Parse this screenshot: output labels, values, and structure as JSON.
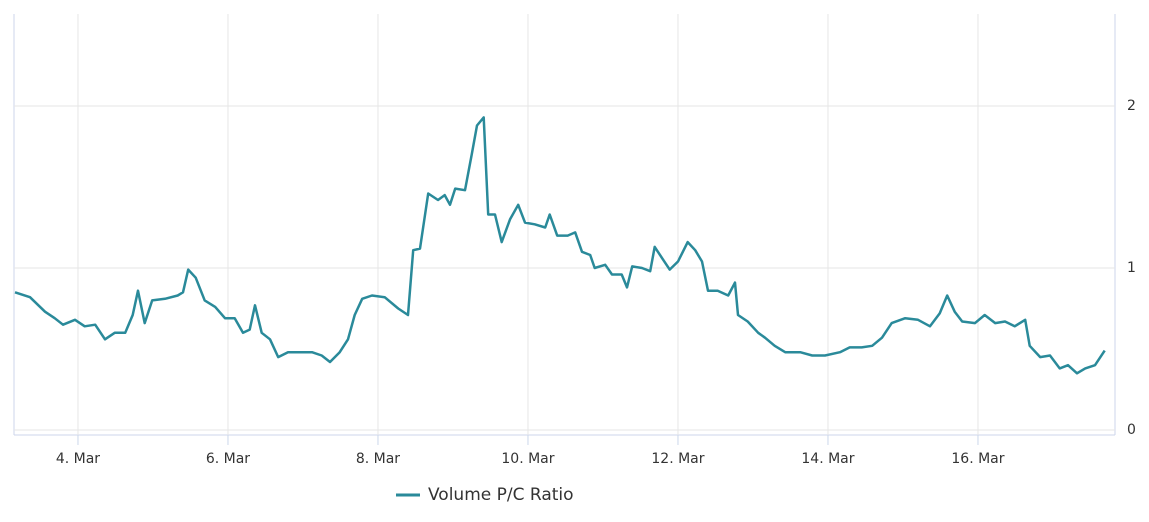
{
  "chart_data": {
    "type": "line",
    "x": [
      3.16,
      3.36,
      3.56,
      3.69,
      3.8,
      3.96,
      4.09,
      4.23,
      4.36,
      4.49,
      4.63,
      4.73,
      4.8,
      4.89,
      4.99,
      5.16,
      5.33,
      5.4,
      5.47,
      5.57,
      5.69,
      5.83,
      5.96,
      6.09,
      6.2,
      6.29,
      6.36,
      6.45,
      6.56,
      6.67,
      6.8,
      6.96,
      7.12,
      7.25,
      7.36,
      7.49,
      7.6,
      7.69,
      7.79,
      7.92,
      8.09,
      8.27,
      8.4,
      8.47,
      8.56,
      8.67,
      8.8,
      8.89,
      8.96,
      9.03,
      9.16,
      9.25,
      9.32,
      9.41,
      9.47,
      9.56,
      9.65,
      9.76,
      9.87,
      9.96,
      10.09,
      10.23,
      10.29,
      10.39,
      10.53,
      10.63,
      10.72,
      10.83,
      10.89,
      11.03,
      11.12,
      11.25,
      11.32,
      11.39,
      11.52,
      11.63,
      11.69,
      11.79,
      11.89,
      12.0,
      12.13,
      12.23,
      12.32,
      12.4,
      12.53,
      12.67,
      12.76,
      12.8,
      12.93,
      13.07,
      13.16,
      13.29,
      13.43,
      13.63,
      13.79,
      13.96,
      14.16,
      14.29,
      14.45,
      14.59,
      14.72,
      14.85,
      15.03,
      15.2,
      15.36,
      15.49,
      15.59,
      15.69,
      15.79,
      15.96,
      16.09,
      16.23,
      16.36,
      16.49,
      16.63,
      16.69,
      16.83,
      16.96,
      17.09,
      17.2,
      17.32,
      17.43,
      17.56,
      17.69
    ],
    "series": [
      {
        "name": "Volume P/C Ratio",
        "color": "#2a8a9a",
        "values": [
          0.85,
          0.82,
          0.73,
          0.69,
          0.65,
          0.68,
          0.64,
          0.65,
          0.56,
          0.6,
          0.6,
          0.71,
          0.86,
          0.66,
          0.8,
          0.81,
          0.83,
          0.85,
          0.99,
          0.94,
          0.8,
          0.76,
          0.69,
          0.69,
          0.6,
          0.62,
          0.77,
          0.6,
          0.56,
          0.45,
          0.48,
          0.48,
          0.48,
          0.46,
          0.42,
          0.48,
          0.56,
          0.71,
          0.81,
          0.83,
          0.82,
          0.75,
          0.71,
          1.11,
          1.12,
          1.46,
          1.42,
          1.45,
          1.39,
          1.49,
          1.48,
          1.7,
          1.88,
          1.93,
          1.33,
          1.33,
          1.16,
          1.3,
          1.39,
          1.28,
          1.27,
          1.25,
          1.33,
          1.2,
          1.2,
          1.22,
          1.1,
          1.08,
          1.0,
          1.02,
          0.96,
          0.96,
          0.88,
          1.01,
          1.0,
          0.98,
          1.13,
          1.06,
          0.99,
          1.04,
          1.16,
          1.11,
          1.04,
          0.86,
          0.86,
          0.83,
          0.91,
          0.71,
          0.67,
          0.6,
          0.57,
          0.52,
          0.48,
          0.48,
          0.46,
          0.46,
          0.48,
          0.51,
          0.51,
          0.52,
          0.57,
          0.66,
          0.69,
          0.68,
          0.64,
          0.72,
          0.83,
          0.73,
          0.67,
          0.66,
          0.71,
          0.66,
          0.67,
          0.64,
          0.68,
          0.52,
          0.45,
          0.46,
          0.38,
          0.4,
          0.35,
          0.38,
          0.4,
          0.49
        ]
      }
    ],
    "xlim": [
      3.147,
      17.787
    ],
    "xticks": [
      {
        "value": 4,
        "label": "4. Mar"
      },
      {
        "value": 6,
        "label": "6. Mar"
      },
      {
        "value": 8,
        "label": "8. Mar"
      },
      {
        "value": 10,
        "label": "10. Mar"
      },
      {
        "value": 12,
        "label": "12. Mar"
      },
      {
        "value": 14,
        "label": "14. Mar"
      },
      {
        "value": 16,
        "label": "16. Mar"
      }
    ],
    "ylim": [
      0,
      2.568
    ],
    "yticks": [
      0,
      1,
      2
    ],
    "grid": true
  }
}
